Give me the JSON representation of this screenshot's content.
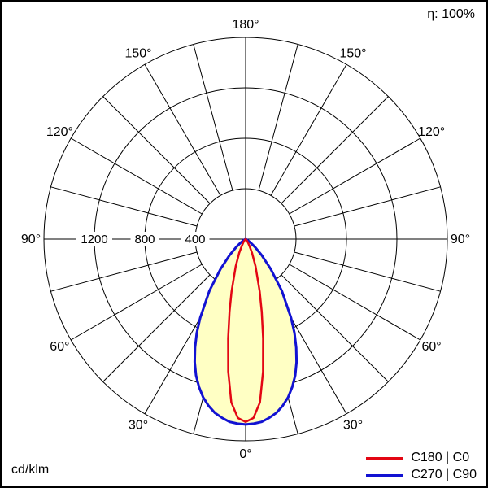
{
  "header": {
    "efficiency": "η: 100%"
  },
  "footer": {
    "unit": "cd/klm"
  },
  "legend": {
    "items": [
      {
        "label": "C180 | C0",
        "color": "#e30613"
      },
      {
        "label": "C270 | C90",
        "color": "#1212d2"
      }
    ]
  },
  "chart_data": {
    "type": "polar",
    "unit": "cd/klm",
    "efficiency_label": "η: 100%",
    "fill_color": "#ffffc4",
    "grid": {
      "r_max": 1600,
      "ring_values": [
        400,
        800,
        1200,
        1600
      ],
      "ring_labels": [
        "400",
        "800",
        "1200"
      ],
      "angle_step_deg": 15,
      "angle_label_step_deg": 30,
      "angle_labels": [
        "0°",
        "30°",
        "60°",
        "90°",
        "120°",
        "150°",
        "180°"
      ]
    },
    "series": [
      {
        "name": "C180 | C0",
        "color": "#e30613",
        "symmetric": true,
        "angles_deg": [
          0,
          2.5,
          5,
          7.5,
          10,
          12.5,
          15,
          20,
          25,
          30,
          35,
          40,
          45,
          50,
          55,
          60,
          65,
          70,
          75,
          80,
          85,
          90
        ],
        "values_cd_per_klm": [
          1450,
          1420,
          1300,
          1060,
          800,
          590,
          430,
          230,
          120,
          60,
          30,
          15,
          7,
          3,
          1,
          0,
          0,
          0,
          0,
          0,
          0,
          0
        ]
      },
      {
        "name": "C270 | C90",
        "color": "#1212d2",
        "symmetric": true,
        "angles_deg": [
          0,
          2.5,
          5,
          7.5,
          10,
          12.5,
          15,
          17.5,
          20,
          22.5,
          25,
          27.5,
          30,
          35,
          40,
          45,
          50,
          55,
          60,
          65,
          70,
          75,
          80,
          85,
          90
        ],
        "values_cd_per_klm": [
          1470,
          1465,
          1455,
          1430,
          1400,
          1355,
          1300,
          1230,
          1150,
          1055,
          950,
          840,
          720,
          500,
          310,
          180,
          95,
          45,
          20,
          8,
          3,
          1,
          0,
          0,
          0
        ]
      }
    ]
  }
}
